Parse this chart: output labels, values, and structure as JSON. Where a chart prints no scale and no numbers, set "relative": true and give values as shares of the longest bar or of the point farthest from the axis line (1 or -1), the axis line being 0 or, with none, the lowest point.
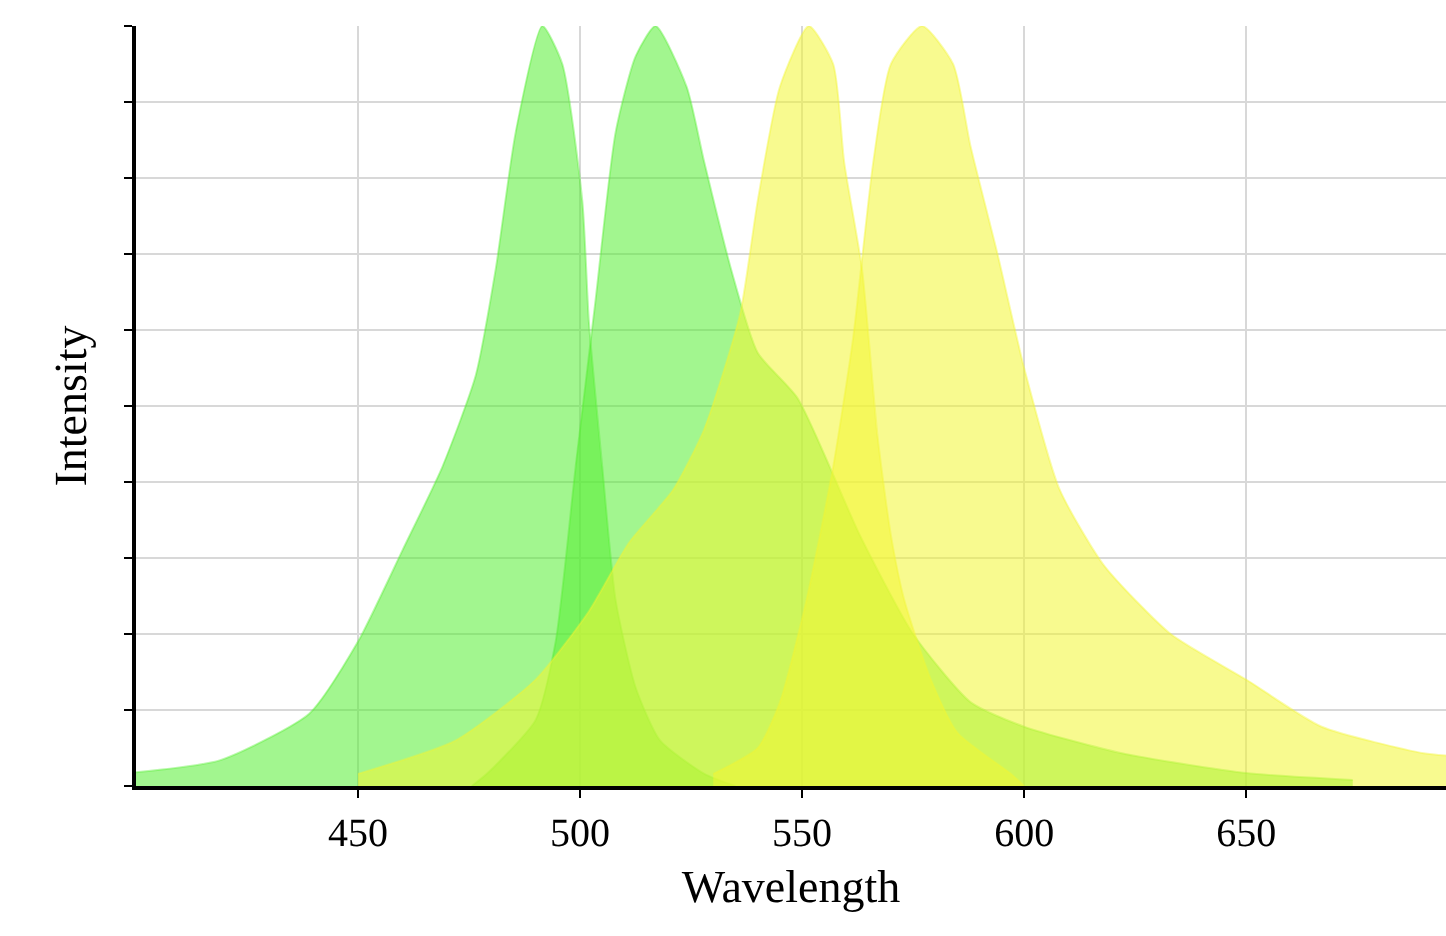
{
  "chart_data": {
    "type": "area",
    "xlabel": "Wavelength",
    "ylabel": "Intensity",
    "relative": true,
    "xlim": [
      400,
      695
    ],
    "xticks": [
      450,
      500,
      550,
      600,
      650
    ],
    "grid": true,
    "series": [
      {
        "color": "#55ee33",
        "x": [
          400,
          419,
          439,
          450,
          460,
          469,
          476.5,
          481,
          485.5,
          491.5,
          496,
          500.5,
          502,
          505,
          508,
          512.5,
          518,
          528,
          535
        ],
        "values": [
          0.018,
          0.034,
          0.095,
          0.19,
          0.31,
          0.42,
          0.54,
          0.68,
          0.86,
          1,
          0.95,
          0.77,
          0.61,
          0.42,
          0.245,
          0.13,
          0.06,
          0.016,
          0
        ]
      },
      {
        "color": "#55ee33",
        "x": [
          475.6,
          479,
          490,
          494.5,
          499,
          503.5,
          508,
          512.5,
          517,
          524,
          528,
          534,
          540,
          549,
          563,
          575,
          588,
          600,
          622,
          650,
          674
        ],
        "values": [
          0,
          0.016,
          0.087,
          0.19,
          0.42,
          0.64,
          0.86,
          0.96,
          1,
          0.92,
          0.82,
          0.68,
          0.57,
          0.51,
          0.33,
          0.2,
          0.11,
          0.078,
          0.043,
          0.017,
          0.008
        ]
      },
      {
        "color": "#f2f533",
        "x": [
          450,
          472,
          490,
          502,
          511,
          521,
          528,
          536,
          540,
          545,
          551.5,
          557,
          559.5,
          563.5,
          567,
          570,
          573,
          579,
          585,
          597,
          600
        ],
        "values": [
          0.016,
          0.06,
          0.14,
          0.23,
          0.32,
          0.39,
          0.47,
          0.62,
          0.77,
          0.92,
          1,
          0.95,
          0.82,
          0.68,
          0.46,
          0.33,
          0.245,
          0.14,
          0.07,
          0.016,
          0
        ]
      },
      {
        "color": "#f2f533",
        "x": [
          530,
          540,
          545,
          551,
          557,
          561.5,
          566,
          570,
          577,
          584,
          588,
          594,
          600,
          608,
          618,
          633,
          650,
          667,
          690,
          695
        ],
        "values": [
          0.016,
          0.05,
          0.11,
          0.245,
          0.42,
          0.59,
          0.82,
          0.95,
          1,
          0.95,
          0.84,
          0.7,
          0.55,
          0.39,
          0.29,
          0.2,
          0.14,
          0.078,
          0.043,
          0.04
        ]
      }
    ]
  }
}
